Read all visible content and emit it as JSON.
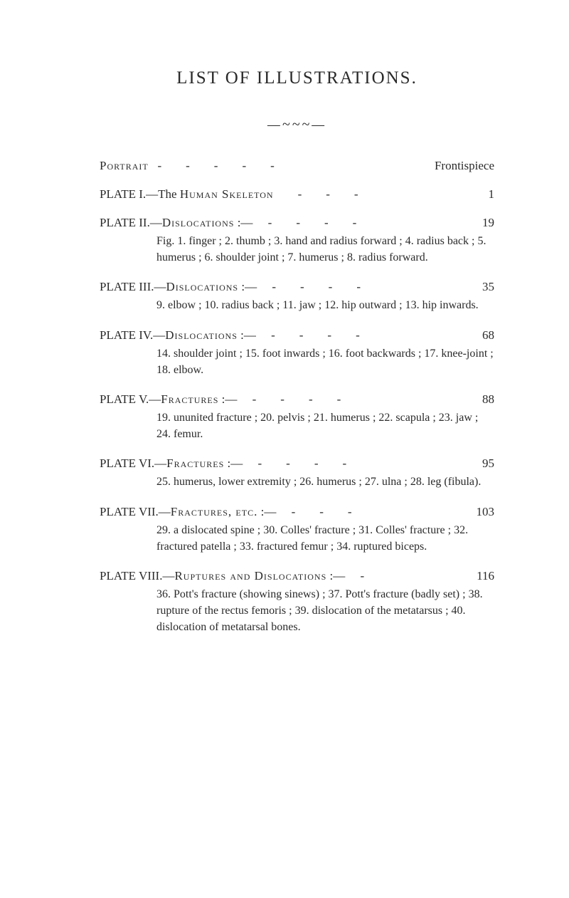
{
  "title": "LIST OF ILLUSTRATIONS.",
  "flourish": "—~~~—",
  "entries": [
    {
      "head_prefix": "",
      "head_sc": "Portrait",
      "head_suffix": "   -        -        -        -        -",
      "page": "Frontispiece",
      "desc": ""
    },
    {
      "head_prefix": "PLATE I.—The ",
      "head_sc": "Human Skeleton",
      "head_suffix": "        -        -        -",
      "page": "1",
      "desc": ""
    },
    {
      "head_prefix": "PLATE II.—",
      "head_sc": "Dislocations",
      "head_suffix": " :—     -        -        -        -",
      "page": "19",
      "desc": "Fig. 1.  finger ;  2. thumb ;  3. hand and radius forward ;  4.  radius  back ;  5.  humerus ;  6.  shoulder joint ;  7.  humerus ;  8.  radius forward."
    },
    {
      "head_prefix": "PLATE III.—",
      "head_sc": "Dislocations",
      "head_suffix": " :—     -        -        -        -",
      "page": "35",
      "desc": "9. elbow ;  10. radius back ;  11. jaw ;  12. hip outward ;  13. hip inwards."
    },
    {
      "head_prefix": "PLATE IV.—",
      "head_sc": "Dislocations",
      "head_suffix": " :—     -        -        -        -",
      "page": "68",
      "desc": "14. shoulder joint ;  15. foot inwards ;  16. foot backwards ;  17. knee-joint ;  18. elbow."
    },
    {
      "head_prefix": "PLATE V.—",
      "head_sc": "Fractures",
      "head_suffix": " :—     -        -        -        -",
      "page": "88",
      "desc": "19. ununited fracture ;  20. pelvis ;  21. humerus ;  22. scapula ;  23. jaw ;  24. femur."
    },
    {
      "head_prefix": "PLATE VI.—",
      "head_sc": "Fractures",
      "head_suffix": " :—     -        -        -        -",
      "page": "95",
      "desc": "25.  humerus, lower extremity ;  26. humerus ;  27. ulna ;  28. leg (fibula)."
    },
    {
      "head_prefix": "PLATE VII.—",
      "head_sc": "Fractures, etc.",
      "head_suffix": " :—     -        -        -",
      "page": "103",
      "desc": "29. a dislocated spine ;  30. Colles' fracture ;  31.  Colles'  fracture ;  32.  fractured  patella ;  33.  fractured  femur ;  34.  ruptured biceps."
    },
    {
      "head_prefix": "PLATE VIII.—",
      "head_sc": "Ruptures and Dislocations",
      "head_suffix": " :—     -",
      "page": "116",
      "desc": "36.  Pott's  fracture  (showing  sinews) ;  37.  Pott's fracture (badly set) ;  38. rupture of the rectus femoris ;  39. dislocation of the metatarsus ;  40.  dislocation of metatarsal bones."
    }
  ]
}
